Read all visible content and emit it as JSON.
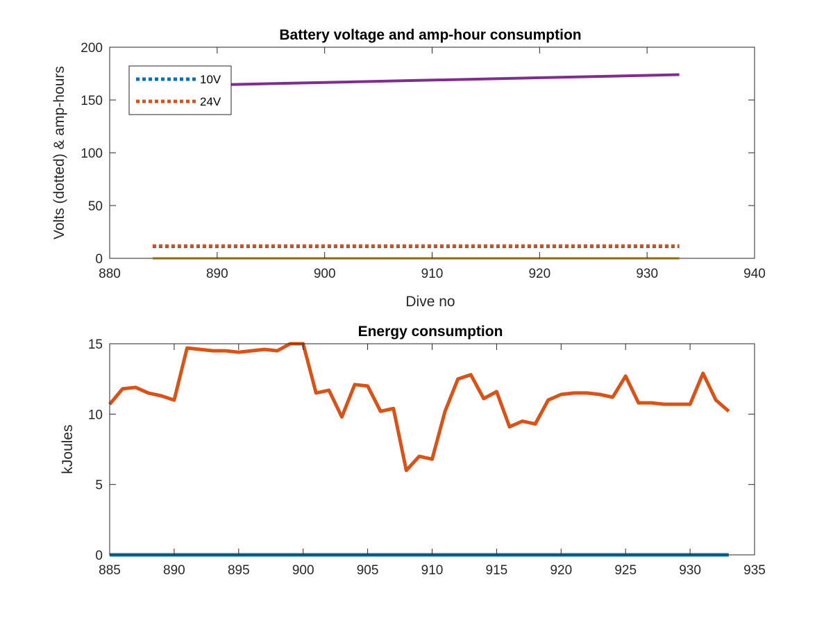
{
  "chart_data": [
    {
      "type": "line",
      "title": "Battery voltage and amp-hour consumption",
      "xlabel": "Dive no",
      "ylabel": "Volts (dotted) & amp-hours",
      "xlim": [
        880,
        940
      ],
      "ylim": [
        0,
        200
      ],
      "xticks": [
        "880",
        "890",
        "900",
        "910",
        "920",
        "930",
        "940"
      ],
      "yticks": [
        "0",
        "50",
        "100",
        "150",
        "200"
      ],
      "grid": false,
      "legend_position": "top-left",
      "series": [
        {
          "name": "10V",
          "style": "dotted",
          "color": "#0072BD",
          "x": [
            884,
            933
          ],
          "y": [
            11,
            11
          ]
        },
        {
          "name": "24V",
          "style": "dotted",
          "color": "#D95319",
          "x": [
            884,
            933
          ],
          "y": [
            12,
            12
          ]
        },
        {
          "style": "solid",
          "color": "#EDB120",
          "x": [
            884,
            933
          ],
          "y": [
            0,
            0
          ]
        },
        {
          "style": "solid",
          "color": "#7E2F8E",
          "x": [
            884,
            933
          ],
          "y": [
            163,
            174
          ]
        }
      ]
    },
    {
      "type": "line",
      "title": "Energy consumption",
      "xlabel": "",
      "ylabel": "kJoules",
      "xlim": [
        885,
        935
      ],
      "ylim": [
        0,
        15
      ],
      "xticks": [
        "885",
        "890",
        "895",
        "900",
        "905",
        "910",
        "915",
        "920",
        "925",
        "930",
        "935"
      ],
      "yticks": [
        "0",
        "5",
        "10",
        "15"
      ],
      "grid": false,
      "series": [
        {
          "style": "solid",
          "color": "#0072BD",
          "x": [
            885,
            933
          ],
          "y": [
            0,
            0
          ]
        },
        {
          "style": "solid",
          "color": "#D95319",
          "x": [
            885,
            886,
            887,
            888,
            889,
            890,
            891,
            892,
            893,
            894,
            895,
            896,
            897,
            898,
            899,
            900,
            901,
            902,
            903,
            904,
            905,
            906,
            907,
            908,
            909,
            910,
            911,
            912,
            913,
            914,
            915,
            916,
            917,
            918,
            919,
            920,
            921,
            922,
            923,
            924,
            925,
            926,
            927,
            928,
            929,
            930,
            931,
            932,
            933
          ],
          "y": [
            10.7,
            11.8,
            11.9,
            11.5,
            11.3,
            11.0,
            14.7,
            14.6,
            14.5,
            14.5,
            14.4,
            14.5,
            14.6,
            14.5,
            15.0,
            15.0,
            11.5,
            11.7,
            9.8,
            12.1,
            12.0,
            10.2,
            10.4,
            6.0,
            7.0,
            6.8,
            10.2,
            12.5,
            12.8,
            11.1,
            11.6,
            9.1,
            9.5,
            9.3,
            11.0,
            11.4,
            11.5,
            11.5,
            11.4,
            11.2,
            12.7,
            10.8,
            10.8,
            10.7,
            10.7,
            10.7,
            12.9,
            11.0,
            10.2
          ]
        }
      ]
    }
  ]
}
